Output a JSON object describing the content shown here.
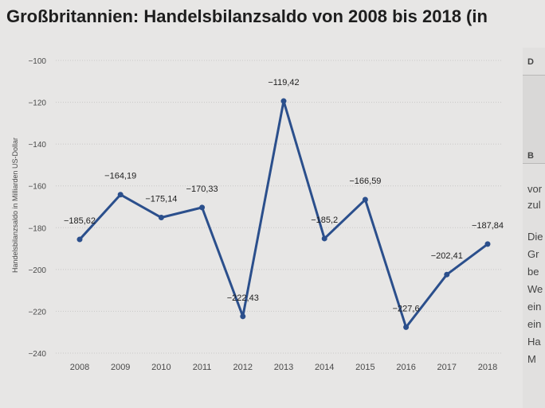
{
  "title": "Großbritannien: Handelsbilanzsaldo von 2008 bis 2018 (in",
  "side_panel": {
    "labels": [
      "D",
      "B",
      "vor",
      "zul",
      "Die",
      "Gr",
      "be",
      "We",
      "ein",
      "ein",
      "Ha",
      "M"
    ]
  },
  "colors": {
    "line": "#2b4f8c",
    "grid": "#c9c8c7",
    "text": "#4a4a4a",
    "label": "#1e1e1e",
    "background": "#e7e6e5"
  },
  "chart_data": {
    "type": "line",
    "title": "Großbritannien: Handelsbilanzsaldo von 2008 bis 2018 (in",
    "xlabel": "",
    "ylabel": "Handelsbilanzsaldo in Milliarden US-Dollar",
    "categories": [
      "2008",
      "2009",
      "2010",
      "2011",
      "2012",
      "2013",
      "2014",
      "2015",
      "2016",
      "2017",
      "2018"
    ],
    "series": [
      {
        "values": [
          -185.62,
          -164.19,
          -175.14,
          -170.33,
          -222.43,
          -119.42,
          -185.2,
          -166.59,
          -227.6,
          -202.41,
          -187.84
        ],
        "data_labels": [
          "−185,62",
          "−164,19",
          "−175,14",
          "−170,33",
          "−222,43",
          "−119,42",
          "−185,2",
          "−166,59",
          "−227,6",
          "−202,41",
          "−187,84"
        ]
      }
    ],
    "y_ticks": [
      -100,
      -120,
      -140,
      -160,
      -180,
      -200,
      -220,
      -240
    ],
    "y_tick_labels": [
      "−100",
      "−120",
      "−140",
      "−160",
      "−180",
      "−200",
      "−220",
      "−240"
    ],
    "ylim": [
      -240,
      -100
    ],
    "grid": true,
    "legend": "none"
  }
}
